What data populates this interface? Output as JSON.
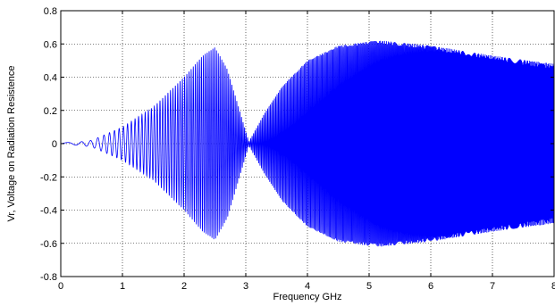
{
  "chart_data": {
    "type": "line",
    "title": "",
    "xlabel": "Frequency GHz",
    "ylabel": "Vr, Voltage on Radiation Resistence",
    "xlim": [
      0,
      8
    ],
    "ylim": [
      -0.8,
      0.8
    ],
    "xticks": [
      0,
      1,
      2,
      3,
      4,
      5,
      6,
      7,
      8
    ],
    "xtick_labels": [
      "0",
      "1",
      "2",
      "3",
      "4",
      "5",
      "6",
      "7",
      "8"
    ],
    "yticks": [
      -0.8,
      -0.6,
      -0.4,
      -0.2,
      0,
      0.2,
      0.4,
      0.6,
      0.8
    ],
    "ytick_labels": [
      "-0.8",
      "-0.6",
      "-0.4",
      "-0.2",
      "0",
      "0.2",
      "0.4",
      "0.6",
      "0.8"
    ],
    "grid": true,
    "line_color": "#0000ff",
    "series": [
      {
        "style": "oscillating",
        "envelope": {
          "x": [
            0,
            0.3,
            0.5,
            1.0,
            1.5,
            2.0,
            2.3,
            2.5,
            2.7,
            2.9,
            3.05,
            3.3,
            3.6,
            4.0,
            4.5,
            5.0,
            5.2,
            6.0,
            7.0,
            8.0
          ],
          "y": [
            0.005,
            0.01,
            0.02,
            0.1,
            0.22,
            0.4,
            0.53,
            0.58,
            0.45,
            0.2,
            0.01,
            0.18,
            0.35,
            0.5,
            0.59,
            0.615,
            0.62,
            0.59,
            0.53,
            0.48
          ]
        }
      }
    ]
  }
}
